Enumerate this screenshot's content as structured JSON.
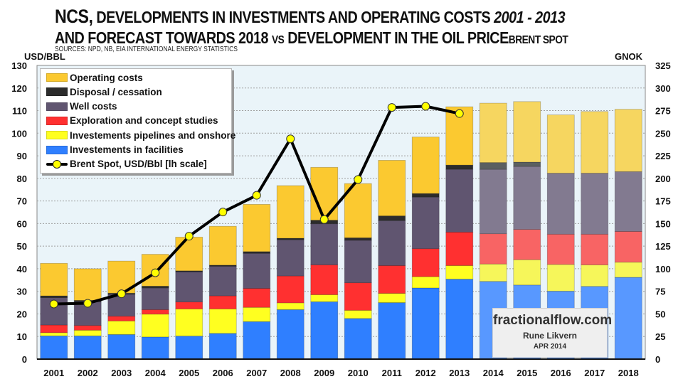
{
  "header": {
    "title_line1_lead": "NCS,",
    "title_line1_main": " DEVELOPMENTS IN INVESTMENTS AND OPERATING COSTS ",
    "title_line1_years": "2001 - 2013",
    "title_line2_main": "AND FORECAST TOWARDS 2018 ",
    "title_line2_vs": "VS",
    "title_line2_tail": " DEVELOPMENT IN THE OIL PRICE",
    "title_line2_suffix": "BRENT SPOT",
    "sources": "SOURCES: NPD, NB, EIA INTERNATIONAL ENERGY STATISTICS"
  },
  "watermark": {
    "site": "fractionalflow.com",
    "author": "Rune Likvern",
    "date": "APR 2014"
  },
  "chart_data": {
    "type": "bar",
    "stacked": true,
    "title": "NCS, developments in investments and operating costs 2001 - 2013 and forecast towards 2018 vs development in the oil price Brent spot",
    "ylabel": "USD/BBL",
    "y2label": "GNOK",
    "ylim": [
      0,
      130
    ],
    "y2lim": [
      0,
      325
    ],
    "yticks": [
      0,
      10,
      20,
      30,
      40,
      50,
      60,
      70,
      80,
      90,
      100,
      110,
      120,
      130
    ],
    "y2ticks": [
      0,
      25,
      50,
      75,
      100,
      125,
      150,
      175,
      200,
      225,
      250,
      275,
      300,
      325
    ],
    "grid": true,
    "legend_position": "top-left",
    "forecast_from": "2014",
    "categories": [
      "2001",
      "2002",
      "2003",
      "2004",
      "2005",
      "2006",
      "2007",
      "2008",
      "2009",
      "2010",
      "2011",
      "2012",
      "2013",
      "2014",
      "2015",
      "2016",
      "2017",
      "2018"
    ],
    "series": [
      {
        "name": "Investements in facilities",
        "color": "#2f7fff",
        "forecast_color": "#5898ff",
        "values": [
          10.3,
          10.3,
          10.9,
          9.8,
          10.2,
          11.4,
          16.6,
          21.9,
          25.4,
          18.0,
          25.0,
          31.5,
          35.4,
          34.4,
          32.8,
          30.1,
          32.2,
          36.2
        ]
      },
      {
        "name": "Investements pipelines and onshore",
        "color": "#ffff20",
        "forecast_color": "#f6f65a",
        "values": [
          1.4,
          2.5,
          6.0,
          10.1,
          12.0,
          10.8,
          6.3,
          3.0,
          3.1,
          3.6,
          4.1,
          5.0,
          6.0,
          7.7,
          11.2,
          11.8,
          9.5,
          6.7
        ]
      },
      {
        "name": "Exploration and concept studies",
        "color": "#ff3030",
        "forecast_color": "#f86464",
        "values": [
          3.4,
          2.1,
          2.1,
          2.0,
          3.1,
          5.8,
          8.4,
          11.9,
          13.2,
          12.2,
          12.3,
          12.4,
          14.8,
          13.4,
          13.4,
          13.4,
          13.6,
          13.6
        ]
      },
      {
        "name": "Well costs",
        "color": "#605570",
        "forecast_color": "#827a90",
        "values": [
          12.1,
          10.5,
          9.7,
          9.6,
          13.3,
          13.1,
          15.5,
          16.0,
          18.2,
          18.8,
          19.9,
          22.8,
          27.8,
          28.5,
          27.9,
          27.0,
          27.0,
          26.5
        ]
      },
      {
        "name": "Disposal / cessation",
        "color": "#2c2c2c",
        "forecast_color": "#5a5f60",
        "values": [
          0.8,
          0.6,
          0.5,
          0.8,
          0.5,
          0.5,
          0.8,
          0.7,
          1.6,
          1.1,
          2.1,
          1.6,
          1.9,
          3.0,
          1.9,
          0,
          0,
          0
        ]
      },
      {
        "name": "Operating costs",
        "color": "#fbc930",
        "forecast_color": "#f6d660",
        "values": [
          14.4,
          14.0,
          14.2,
          14.1,
          14.9,
          17.2,
          20.9,
          23.3,
          23.4,
          24.0,
          24.6,
          25.0,
          25.8,
          26.3,
          26.8,
          25.8,
          27.3,
          27.6
        ]
      }
    ],
    "line_series": {
      "name": "Brent Spot, USD/Bbl [lh scale]",
      "color": "#000000",
      "marker_color": "#ffff00",
      "categories": [
        "2001",
        "2002",
        "2003",
        "2004",
        "2005",
        "2006",
        "2007",
        "2008",
        "2009",
        "2010",
        "2011",
        "2012",
        "2013"
      ],
      "values": [
        24.4,
        24.7,
        28.9,
        38.2,
        54.4,
        65.1,
        72.5,
        97.5,
        61.8,
        79.5,
        111.4,
        111.9,
        108.7
      ]
    },
    "legend": [
      {
        "label": "Operating costs",
        "kind": "box",
        "color": "#fbc930"
      },
      {
        "label": "Disposal / cessation",
        "kind": "box",
        "color": "#2c2c2c"
      },
      {
        "label": "Well costs",
        "kind": "box",
        "color": "#605570"
      },
      {
        "label": "Exploration and concept studies",
        "kind": "box",
        "color": "#ff3030"
      },
      {
        "label": "Investements pipelines and onshore",
        "kind": "box",
        "color": "#ffff20"
      },
      {
        "label": "Investements in facilities",
        "kind": "box",
        "color": "#2f7fff"
      },
      {
        "label": "Brent Spot, USD/Bbl [lh scale]",
        "kind": "line"
      }
    ]
  }
}
